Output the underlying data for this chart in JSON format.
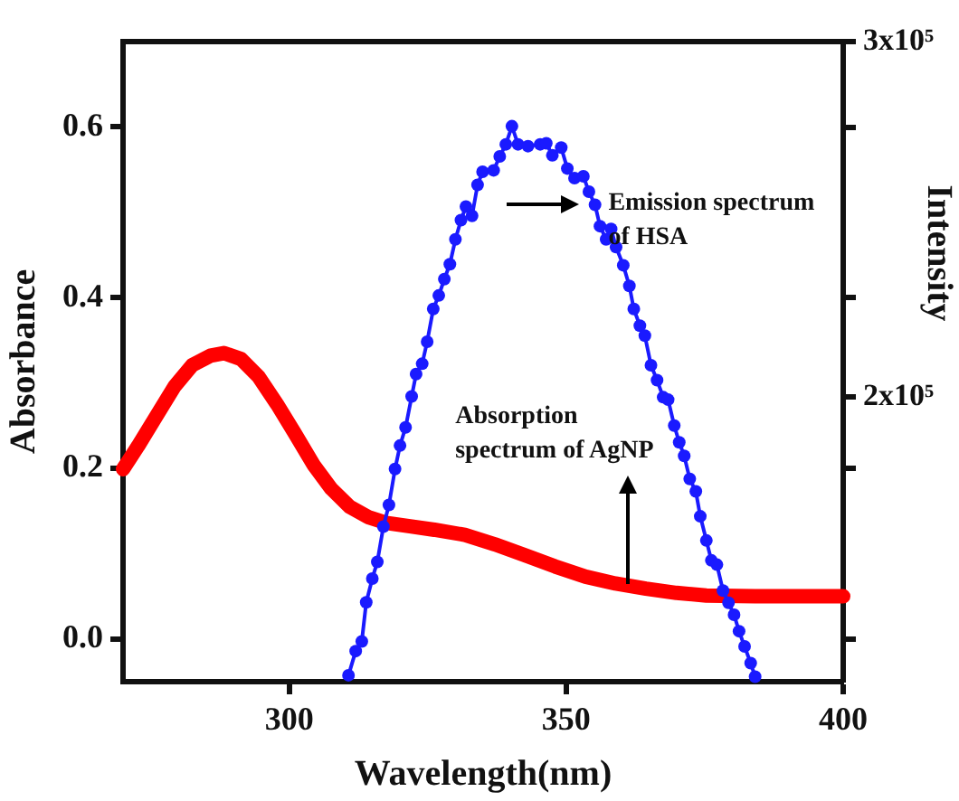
{
  "chart_data": {
    "type": "line",
    "xlabel": "Wavelength(nm)",
    "ylabel": "Absorbance",
    "y2label": "Intensity",
    "xlim": [
      270,
      400
    ],
    "xticks": [
      300,
      350,
      400
    ],
    "ylim": [
      -0.05,
      0.7
    ],
    "yticks": [
      {
        "value": 0,
        "label": "0.0"
      },
      0.2,
      0.4,
      0.6
    ],
    "y2lim": [
      120000,
      300000
    ],
    "y2ticks": [
      {
        "value": 300000,
        "label": "3x10⁵"
      },
      {
        "value": 275800,
        "label": null
      },
      {
        "value": 228000,
        "label": null
      },
      {
        "value": 200000,
        "label": "2x10⁵"
      },
      {
        "value": 180000,
        "label": null
      },
      {
        "value": 132000,
        "label": null
      }
    ],
    "grid": false,
    "legend": false,
    "line_style": "solid",
    "series": [
      {
        "color": "#ff0000",
        "marker": "none",
        "x": [
          270,
          272.7,
          276,
          279.3,
          282.5,
          285.8,
          288.2,
          291.3,
          294.5,
          297.8,
          301.1,
          304.4,
          307.6,
          310.9,
          314.2,
          317.5,
          321.8,
          326.2,
          331.7,
          337.1,
          342.6,
          348,
          353.5,
          358.9,
          364.4,
          369.9,
          375.3,
          384.1,
          400
        ],
        "values": [
          0.199,
          0.226,
          0.261,
          0.296,
          0.321,
          0.332,
          0.335,
          0.328,
          0.307,
          0.275,
          0.24,
          0.204,
          0.176,
          0.155,
          0.143,
          0.136,
          0.132,
          0.128,
          0.122,
          0.111,
          0.098,
          0.085,
          0.073,
          0.065,
          0.059,
          0.054,
          0.051,
          0.05,
          0.05
        ]
      },
      {
        "color": "#1a1aff",
        "marker": "circle",
        "axis": "y2",
        "x": [
          310.7,
          312,
          313.1,
          313.9,
          315,
          315.9,
          317,
          318,
          319.1,
          320,
          321,
          322.1,
          322.9,
          324,
          324.9,
          326,
          327,
          328,
          329,
          330,
          331,
          331.9,
          333,
          334,
          334.9,
          336.9,
          338,
          339.1,
          340.2,
          341.3,
          343.1,
          345.3,
          346.4,
          347.5,
          349.1,
          350.2,
          351.5,
          353.1,
          354.1,
          355.2,
          356.1,
          357.2,
          358.1,
          359,
          360.3,
          361.4,
          362.2,
          363.3,
          364.2,
          365.3,
          366.4,
          367.5,
          368.4,
          369.5,
          370.4,
          371.3,
          372.3,
          373.4,
          374.2,
          375.3,
          376.2,
          377.2,
          378.3,
          379.3,
          380.3,
          381.2,
          382.2,
          383.3,
          384.1
        ],
        "values": [
          121800,
          128600,
          131300,
          142300,
          149000,
          153700,
          163600,
          169700,
          179800,
          186400,
          191500,
          200200,
          206500,
          209400,
          215600,
          224800,
          228600,
          233200,
          237400,
          244400,
          249800,
          253600,
          251000,
          259700,
          263400,
          263800,
          267700,
          271100,
          276200,
          271100,
          270600,
          271100,
          271400,
          268000,
          270200,
          264300,
          261600,
          262100,
          257800,
          254100,
          248100,
          244400,
          247300,
          242200,
          237100,
          231300,
          224800,
          220100,
          217300,
          209000,
          204800,
          200000,
          199300,
          192000,
          187300,
          183500,
          177000,
          173500,
          166500,
          159700,
          154100,
          152900,
          145600,
          142200,
          138800,
          134200,
          129900,
          125200,
          121400
        ]
      }
    ],
    "annotations": [
      {
        "text": "Emission spectrum of HSA",
        "x": 355,
        "y": 0.51
      },
      {
        "text": "Absorption spectrum of AgNP",
        "x": 361,
        "y": 0.065
      }
    ]
  }
}
